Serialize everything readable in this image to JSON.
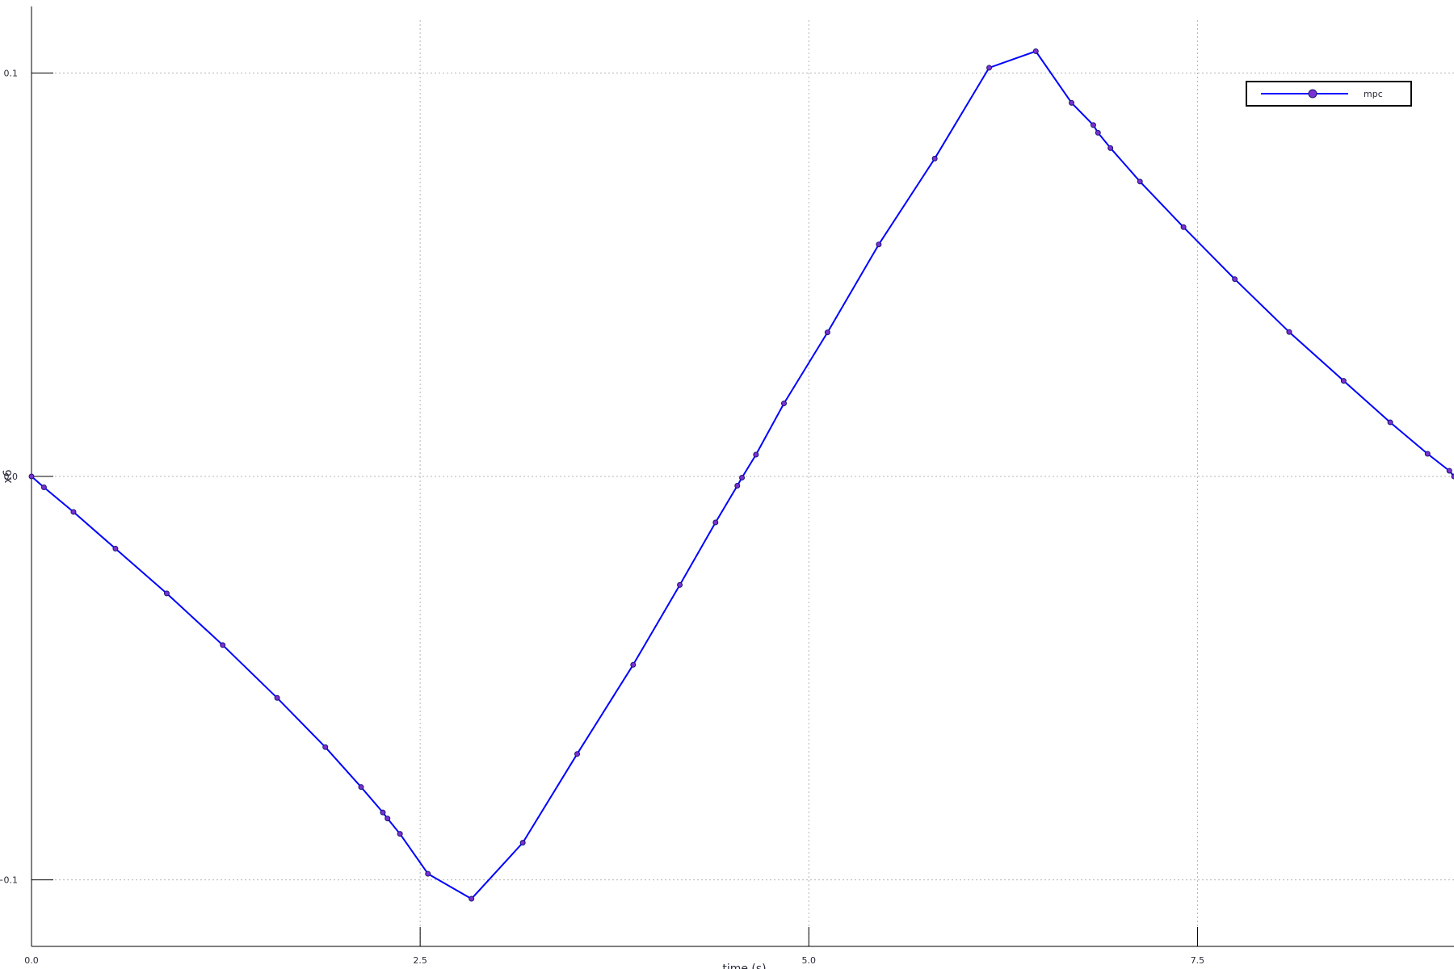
{
  "chart_data": {
    "type": "line",
    "title": "",
    "xlabel": "time (s)",
    "ylabel": "x6",
    "xlim": [
      0,
      9.15
    ],
    "ylim": [
      -0.1165,
      0.1165
    ],
    "xticks": [
      0,
      2.5,
      5.0,
      7.5
    ],
    "xtick_labels": [
      "0.0",
      "2.5",
      "5.0",
      "7.5"
    ],
    "yticks": [
      -0.1,
      0,
      0.1
    ],
    "ytick_labels": [
      "−0.1",
      "0.0",
      "0.1"
    ],
    "grid": true,
    "legend_position": "top-right",
    "series": [
      {
        "name": "mpc",
        "color": "#0000ff",
        "marker_color": "#7b2fd6",
        "x": [
          0,
          0.08,
          0.27,
          0.54,
          0.87,
          1.23,
          1.58,
          1.89,
          2.12,
          2.26,
          2.29,
          2.37,
          2.55,
          2.83,
          3.16,
          3.51,
          3.87,
          4.17,
          4.4,
          4.54,
          4.57,
          4.66,
          4.84,
          5.12,
          5.45,
          5.81,
          6.16,
          6.46,
          6.69,
          6.83,
          6.86,
          6.94,
          7.13,
          7.41,
          7.74,
          8.09,
          8.44,
          8.74,
          8.98,
          9.12,
          9.15
        ],
        "y": [
          0,
          -0.0027,
          -0.0088,
          -0.0179,
          -0.029,
          -0.0418,
          -0.0549,
          -0.0671,
          -0.077,
          -0.0833,
          -0.0848,
          -0.0886,
          -0.0985,
          -0.1047,
          -0.0908,
          -0.0688,
          -0.0467,
          -0.0269,
          -0.0114,
          -0.0023,
          -0.0003,
          0.0054,
          0.0181,
          0.0357,
          0.0575,
          0.0788,
          0.1013,
          0.1054,
          0.0926,
          0.0871,
          0.0852,
          0.0814,
          0.0731,
          0.0618,
          0.0489,
          0.0358,
          0.0237,
          0.0134,
          0.0056,
          0.0014,
          0
        ]
      }
    ]
  }
}
